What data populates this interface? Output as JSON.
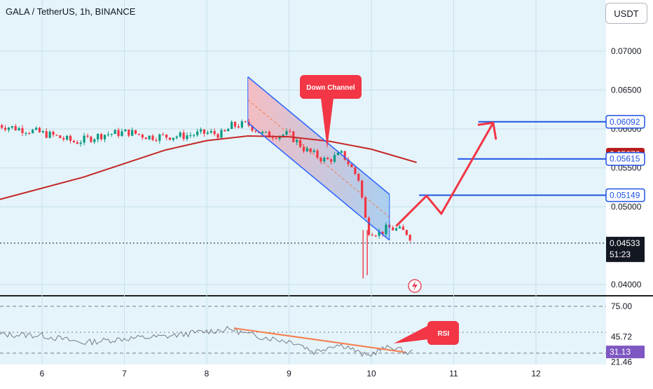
{
  "header": {
    "title": "GALA / TetherUS, 1h, BINANCE",
    "currency_button": "USDT"
  },
  "colors": {
    "bull": "#089981",
    "bear": "#f23645",
    "ma": "#c62828",
    "channel": "#2962ff",
    "annotation": "#f23645",
    "level": "#1e53e5",
    "current_price": "#131722",
    "rsi_line": "#787b86",
    "rsi_trend": "#f57c4a"
  },
  "icons": {
    "replay": "lightning-circle-icon"
  },
  "chart_data": [
    {
      "type": "candlestick",
      "title": "GALA / TetherUS, 1h, BINANCE",
      "xlabel": "",
      "ylabel": "",
      "x_ticks": [
        {
          "label": "6",
          "pos": 6
        },
        {
          "label": "7",
          "pos": 7
        },
        {
          "label": "8",
          "pos": 8
        },
        {
          "label": "9",
          "pos": 9
        },
        {
          "label": "10",
          "pos": 10
        },
        {
          "label": "11",
          "pos": 11
        },
        {
          "label": "12",
          "pos": 12
        }
      ],
      "x_range": [
        5.47,
        12.85
      ],
      "ylim": [
        0.038,
        0.0748
      ],
      "y_ticks": [
        "0.07000",
        "0.06500",
        "0.06000",
        "0.05500",
        "0.05000",
        "0.04000"
      ],
      "grid": true,
      "series": [
        {
          "kind": "ohlc",
          "anchors": [
            [
              5.47,
              0.0605
            ],
            [
              5.85,
              0.0598
            ],
            [
              6.15,
              0.0591
            ],
            [
              6.4,
              0.0583
            ],
            [
              6.75,
              0.0593
            ],
            [
              7.05,
              0.0596
            ],
            [
              7.3,
              0.059
            ],
            [
              7.7,
              0.0591
            ],
            [
              8.0,
              0.0595
            ],
            [
              8.2,
              0.0593
            ],
            [
              8.3,
              0.0604
            ],
            [
              8.5,
              0.0606
            ],
            [
              8.7,
              0.0592
            ],
            [
              9.0,
              0.0593
            ],
            [
              9.2,
              0.0573
            ],
            [
              9.45,
              0.0559
            ],
            [
              9.65,
              0.0568
            ],
            [
              9.85,
              0.0535
            ],
            [
              9.95,
              0.047
            ],
            [
              10.1,
              0.0466
            ],
            [
              10.2,
              0.0473
            ],
            [
              10.3,
              0.0471
            ],
            [
              10.45,
              0.0466
            ],
            [
              10.5,
              0.0455
            ]
          ],
          "spikes": [
            [
              9.9,
              0.0408
            ],
            [
              9.95,
              0.0412
            ]
          ]
        },
        {
          "kind": "line",
          "name": "MA",
          "points": [
            [
              5.47,
              0.0509
            ],
            [
              6.5,
              0.0538
            ],
            [
              7.5,
              0.0573
            ],
            [
              8.0,
              0.0585
            ],
            [
              8.5,
              0.0591
            ],
            [
              9.0,
              0.059
            ],
            [
              9.5,
              0.0584
            ],
            [
              10.0,
              0.0574
            ],
            [
              10.55,
              0.0557
            ]
          ]
        }
      ],
      "price_labels": [
        {
          "text": "0.06092",
          "value": 0.06092,
          "style": "level"
        },
        {
          "text": "0.05676",
          "value": 0.05676,
          "style": "red"
        },
        {
          "text": "0.05615",
          "value": 0.05615,
          "style": "level"
        },
        {
          "text": "0.05149",
          "value": 0.05149,
          "style": "level"
        },
        {
          "text": "0.04533",
          "sub": "51:23",
          "value": 0.04533,
          "style": "current"
        }
      ],
      "levels": [
        {
          "value": 0.06092,
          "x_from": 11.3
        },
        {
          "value": 0.05615,
          "x_from": 11.05
        },
        {
          "value": 0.05149,
          "x_from": 10.58
        }
      ],
      "current_price": 0.04533,
      "annotations": [
        {
          "text": "Down Channel",
          "type": "callout"
        },
        {
          "type": "channel",
          "upper": [
            [
              8.5,
              0.0667
            ],
            [
              10.22,
              0.0516
            ]
          ],
          "lower": [
            [
              8.5,
              0.0608
            ],
            [
              10.22,
              0.0457
            ]
          ]
        },
        {
          "type": "projection",
          "points": [
            [
              10.3,
              0.0475
            ],
            [
              10.67,
              0.0514
            ],
            [
              10.85,
              0.0491
            ],
            [
              11.48,
              0.0608
            ]
          ]
        }
      ]
    },
    {
      "type": "line",
      "name": "RSI",
      "ylim": [
        18,
        82
      ],
      "y_ticks": [
        "75.00",
        "45.72",
        "21.46"
      ],
      "current_value": "31.13",
      "bands": [
        75,
        50,
        30
      ],
      "anchors": [
        [
          5.47,
          48
        ],
        [
          6.0,
          47
        ],
        [
          6.5,
          40
        ],
        [
          7.0,
          44
        ],
        [
          7.5,
          46
        ],
        [
          8.0,
          51
        ],
        [
          8.3,
          53
        ],
        [
          8.5,
          48
        ],
        [
          8.8,
          44
        ],
        [
          9.1,
          40
        ],
        [
          9.3,
          31
        ],
        [
          9.55,
          38
        ],
        [
          9.7,
          37
        ],
        [
          9.85,
          30
        ],
        [
          9.95,
          27
        ],
        [
          10.1,
          33
        ],
        [
          10.25,
          36
        ],
        [
          10.35,
          33
        ],
        [
          10.45,
          30
        ],
        [
          10.5,
          31
        ]
      ],
      "annotations": [
        {
          "text": "RSI",
          "type": "callout"
        },
        {
          "type": "trendline",
          "points": [
            [
              8.33,
              54
            ],
            [
              10.4,
              31
            ]
          ]
        }
      ]
    }
  ]
}
